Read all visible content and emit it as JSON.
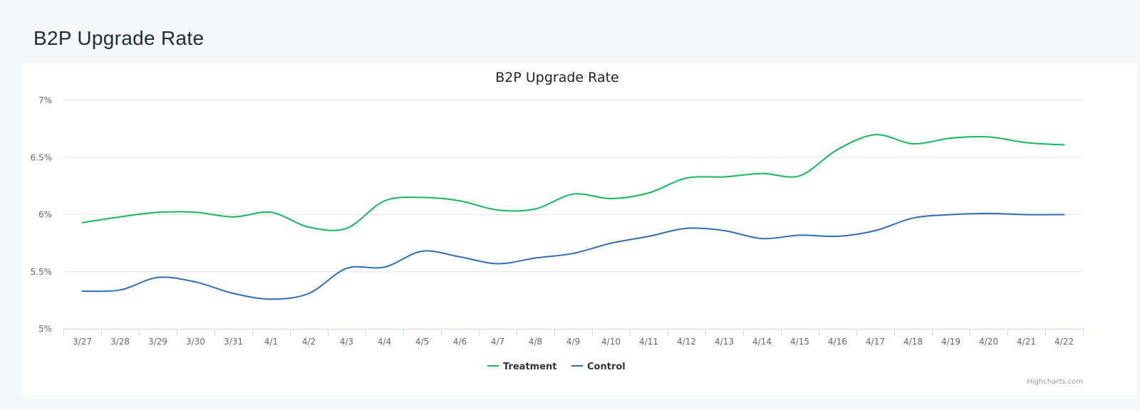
{
  "page": {
    "title": "B2P Upgrade Rate"
  },
  "credits": "Highcharts.com",
  "chart_data": {
    "type": "line",
    "title": "B2P Upgrade Rate",
    "xlabel": "",
    "ylabel": "",
    "ylim": [
      5,
      7
    ],
    "yticks": [
      5,
      5.5,
      6,
      6.5,
      7
    ],
    "ytick_labels": [
      "5%",
      "5.5%",
      "6%",
      "6.5%",
      "7%"
    ],
    "grid": true,
    "legend_position": "bottom-center",
    "categories": [
      "3/27",
      "3/28",
      "3/29",
      "3/30",
      "3/31",
      "4/1",
      "4/2",
      "4/3",
      "4/4",
      "4/5",
      "4/6",
      "4/7",
      "4/8",
      "4/9",
      "4/10",
      "4/11",
      "4/12",
      "4/13",
      "4/14",
      "4/15",
      "4/16",
      "4/17",
      "4/18",
      "4/19",
      "4/20",
      "4/21",
      "4/22"
    ],
    "series": [
      {
        "name": "Treatment",
        "color": "#16b85a",
        "values": [
          5.93,
          5.98,
          6.02,
          6.02,
          5.98,
          6.02,
          5.89,
          5.88,
          6.12,
          6.15,
          6.12,
          6.04,
          6.05,
          6.18,
          6.14,
          6.19,
          6.32,
          6.33,
          6.36,
          6.34,
          6.57,
          6.7,
          6.62,
          6.67,
          6.68,
          6.63,
          6.61
        ]
      },
      {
        "name": "Control",
        "color": "#2f6db5",
        "values": [
          5.33,
          5.34,
          5.45,
          5.41,
          5.31,
          5.26,
          5.31,
          5.53,
          5.54,
          5.68,
          5.63,
          5.57,
          5.62,
          5.66,
          5.75,
          5.81,
          5.88,
          5.86,
          5.79,
          5.82,
          5.81,
          5.86,
          5.97,
          6.0,
          6.01,
          6.0,
          6.0
        ]
      }
    ]
  }
}
